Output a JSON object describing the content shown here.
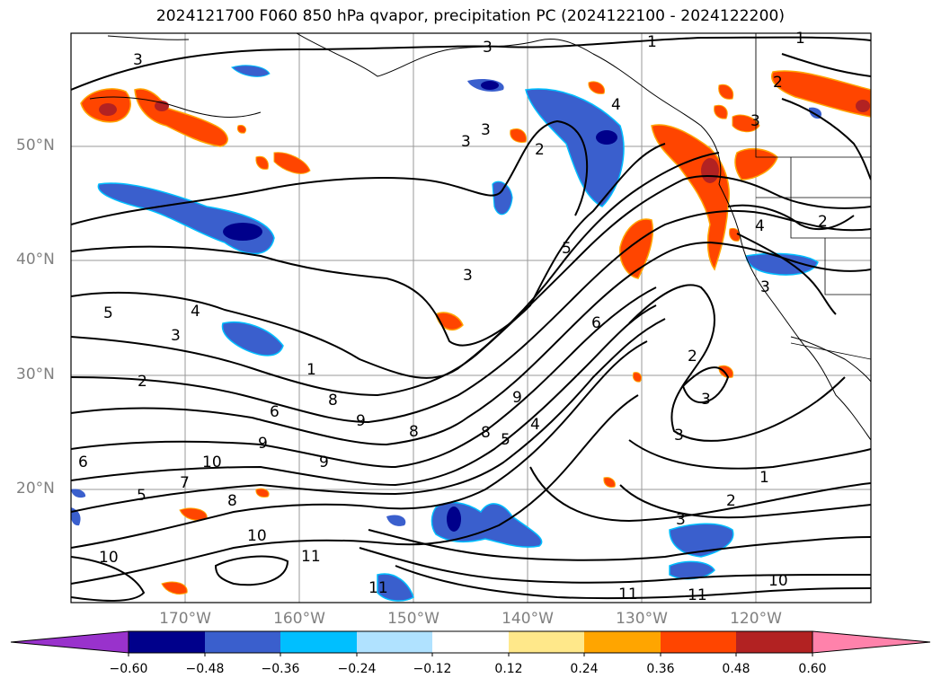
{
  "title": "2024121700 F060 850 hPa qvapor, precipitation PC (2024122100 - 2024122200)",
  "axes": {
    "lat_labels": [
      "50°N",
      "40°N",
      "30°N",
      "20°N"
    ],
    "lon_labels": [
      "170°W",
      "160°W",
      "150°W",
      "140°W",
      "130°W",
      "120°W"
    ]
  },
  "colorbar": {
    "tick_labels": [
      "−0.60",
      "−0.48",
      "−0.36",
      "−0.24",
      "−0.12",
      "0.12",
      "0.24",
      "0.36",
      "0.48",
      "0.60"
    ],
    "colors": [
      "#9932cc",
      "#00008b",
      "#3a5fcd",
      "#00bfff",
      "#b0e2ff",
      "#ffffff",
      "#ffe88a",
      "#ffa500",
      "#ff4500",
      "#b22222",
      "#ff82ab"
    ]
  },
  "contour_labels": [
    "3",
    "1",
    "1",
    "3",
    "2",
    "3",
    "3",
    "2",
    "3",
    "4",
    "5",
    "4",
    "3",
    "2",
    "1",
    "6",
    "8",
    "9",
    "10",
    "8",
    "9",
    "6",
    "5",
    "7",
    "8",
    "10",
    "11",
    "10",
    "11",
    "11",
    "11",
    "1",
    "2",
    "3",
    "3",
    "2",
    "3",
    "4",
    "2",
    "5",
    "6",
    "9",
    "8",
    "5",
    "4",
    "9",
    "10",
    "3",
    "3"
  ]
}
